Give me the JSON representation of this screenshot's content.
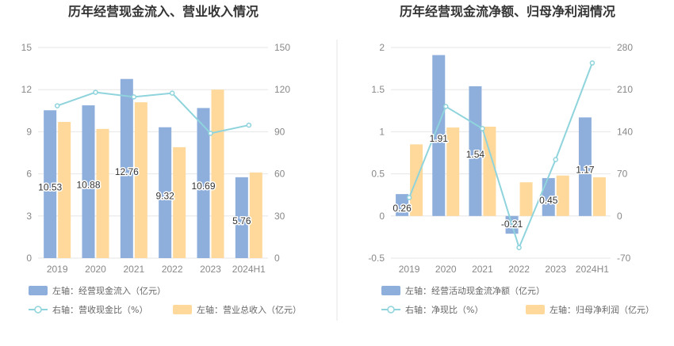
{
  "colors": {
    "bar1": "#8eaedc",
    "bar2": "#fed99b",
    "line": "#8fd4dc",
    "grid": "#e6e6e6",
    "divider": "#e6e6e6"
  },
  "chart_data": [
    {
      "type": "bar",
      "title": "历年经营现金流入、营业收入情况",
      "categories": [
        "2019",
        "2020",
        "2021",
        "2022",
        "2023",
        "2024H1"
      ],
      "left_axis": {
        "min": 0,
        "max": 15,
        "ticks": [
          0,
          3,
          6,
          9,
          12,
          15
        ]
      },
      "right_axis": {
        "min": 0,
        "max": 150,
        "ticks": [
          0,
          30,
          60,
          90,
          120,
          150
        ]
      },
      "series": [
        {
          "name": "左轴：经营现金流入（亿元）",
          "kind": "bar",
          "axis": "left",
          "values": [
            10.53,
            10.88,
            12.76,
            9.32,
            10.69,
            5.76
          ],
          "labels": [
            "10.53",
            "10.88",
            "12.76",
            "9.32",
            "10.69",
            "5.76"
          ],
          "color_key": "bar1"
        },
        {
          "name": "左轴：营业总收入（亿元）",
          "kind": "bar",
          "axis": "left",
          "values": [
            9.7,
            9.2,
            11.1,
            7.9,
            12.0,
            6.1
          ],
          "color_key": "bar2"
        },
        {
          "name": "右轴：营收现金比（%）",
          "kind": "line",
          "axis": "right",
          "values": [
            108.5,
            118.1,
            114.8,
            117.5,
            88.9,
            94.7
          ],
          "color_key": "line"
        }
      ],
      "legend_position": "bottom-left",
      "grid": true
    },
    {
      "type": "bar",
      "title": "历年经营现金流净额、归母净利润情况",
      "categories": [
        "2019",
        "2020",
        "2021",
        "2022",
        "2023",
        "2024H1"
      ],
      "left_axis": {
        "min": -0.5,
        "max": 2,
        "ticks": [
          -0.5,
          0,
          0.5,
          1,
          1.5,
          2
        ]
      },
      "right_axis": {
        "min": -70,
        "max": 280,
        "ticks": [
          -70,
          0,
          70,
          140,
          210,
          280
        ]
      },
      "series": [
        {
          "name": "左轴：经营活动现金流净额（亿元）",
          "kind": "bar",
          "axis": "left",
          "values": [
            0.26,
            1.91,
            1.54,
            -0.21,
            0.45,
            1.17
          ],
          "labels": [
            "0.26",
            "1.91",
            "1.54",
            "-0.21",
            "0.45",
            "1.17"
          ],
          "color_key": "bar1"
        },
        {
          "name": "左轴：归母净利润（亿元）",
          "kind": "bar",
          "axis": "left",
          "values": [
            0.85,
            1.05,
            1.06,
            0.4,
            0.48,
            0.46
          ],
          "color_key": "bar2"
        },
        {
          "name": "右轴：净现比（%）",
          "kind": "line",
          "axis": "right",
          "values": [
            30.6,
            181.9,
            145.3,
            -52.5,
            93.8,
            254.3
          ],
          "color_key": "line"
        }
      ],
      "legend_position": "bottom-left",
      "grid": true
    }
  ]
}
